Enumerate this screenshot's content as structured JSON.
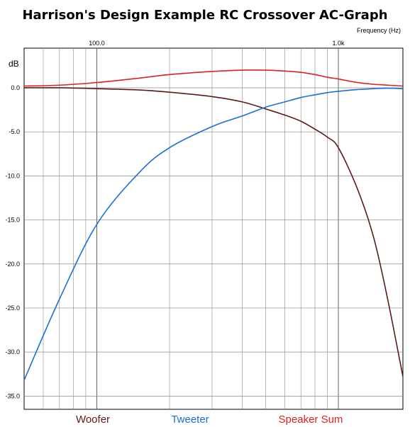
{
  "chart_data": {
    "type": "line",
    "title": "Harrison's Design Example RC Crossover AC-Graph",
    "xlabel": "Frequency  (Hz)",
    "ylabel": "dB",
    "x_scale": "log",
    "xlim": [
      50,
      1850
    ],
    "ylim": [
      -36.5,
      4.5
    ],
    "x_tick_labels": [
      {
        "value": 100,
        "label": "100.0"
      },
      {
        "value": 1000,
        "label": "1.0k"
      }
    ],
    "y_ticks": [
      0,
      -5,
      -10,
      -15,
      -20,
      -25,
      -30,
      -35
    ],
    "y_tick_labels": [
      "0.0",
      "-5.0",
      "-10.0",
      "-15.0",
      "-20.0",
      "-25.0",
      "-30.0",
      "-35.0"
    ],
    "grid": true,
    "legend_position": "bottom",
    "series": [
      {
        "name": "Woofer",
        "color": "#5b1a1a",
        "x": [
          50,
          70,
          100,
          150,
          200,
          300,
          400,
          500,
          600,
          700,
          800,
          900,
          1000,
          1200,
          1400,
          1600,
          1850
        ],
        "y": [
          0.0,
          0.0,
          -0.1,
          -0.25,
          -0.5,
          -1.0,
          -1.6,
          -2.4,
          -3.1,
          -3.8,
          -4.7,
          -5.6,
          -6.8,
          -11.5,
          -17.0,
          -24.0,
          -32.8
        ]
      },
      {
        "name": "Tweeter",
        "color": "#1a6fd9",
        "x": [
          50,
          70,
          100,
          150,
          200,
          300,
          400,
          500,
          600,
          700,
          800,
          900,
          1000,
          1200,
          1400,
          1600,
          1850
        ],
        "y": [
          -33.2,
          -24.0,
          -15.5,
          -9.6,
          -6.8,
          -4.4,
          -3.2,
          -2.2,
          -1.6,
          -1.1,
          -0.8,
          -0.55,
          -0.4,
          -0.2,
          -0.1,
          -0.05,
          -0.1
        ]
      },
      {
        "name": "Speaker Sum",
        "color": "#e02020",
        "x": [
          50,
          70,
          100,
          150,
          200,
          300,
          400,
          500,
          600,
          700,
          800,
          900,
          1000,
          1200,
          1400,
          1600,
          1850
        ],
        "y": [
          0.2,
          0.3,
          0.6,
          1.1,
          1.5,
          1.85,
          2.0,
          2.0,
          1.9,
          1.75,
          1.5,
          1.2,
          1.0,
          0.6,
          0.4,
          0.3,
          0.2
        ]
      }
    ]
  }
}
